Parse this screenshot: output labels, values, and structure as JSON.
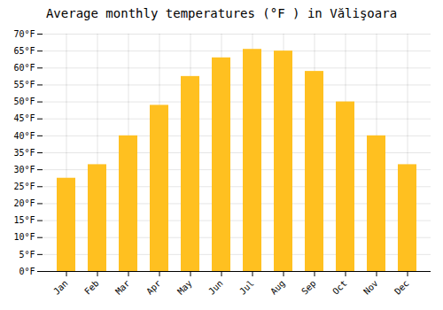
{
  "chart_data": {
    "type": "bar",
    "title": "Average monthly temperatures (°F ) in Vălişoara",
    "categories": [
      "Jan",
      "Feb",
      "Mar",
      "Apr",
      "May",
      "Jun",
      "Jul",
      "Aug",
      "Sep",
      "Oct",
      "Nov",
      "Dec"
    ],
    "values": [
      27.5,
      31.5,
      40.0,
      49.0,
      57.5,
      63.0,
      65.5,
      65.0,
      59.0,
      50.0,
      40.0,
      31.5
    ],
    "color": "#FFC020",
    "ylim": [
      0,
      70
    ],
    "yticks": [
      {
        "value": 0,
        "label": "0°F"
      },
      {
        "value": 5,
        "label": "5°F"
      },
      {
        "value": 10,
        "label": "10°F"
      },
      {
        "value": 15,
        "label": "15°F"
      },
      {
        "value": 20,
        "label": "20°F"
      },
      {
        "value": 25,
        "label": "25°F"
      },
      {
        "value": 30,
        "label": "30°F"
      },
      {
        "value": 35,
        "label": "35°F"
      },
      {
        "value": 40,
        "label": "40°F"
      },
      {
        "value": 45,
        "label": "45°F"
      },
      {
        "value": 50,
        "label": "50°F"
      },
      {
        "value": 55,
        "label": "55°F"
      },
      {
        "value": 60,
        "label": "60°F"
      },
      {
        "value": 65,
        "label": "65°F"
      },
      {
        "value": 70,
        "label": "70°F"
      }
    ],
    "grid": true
  }
}
